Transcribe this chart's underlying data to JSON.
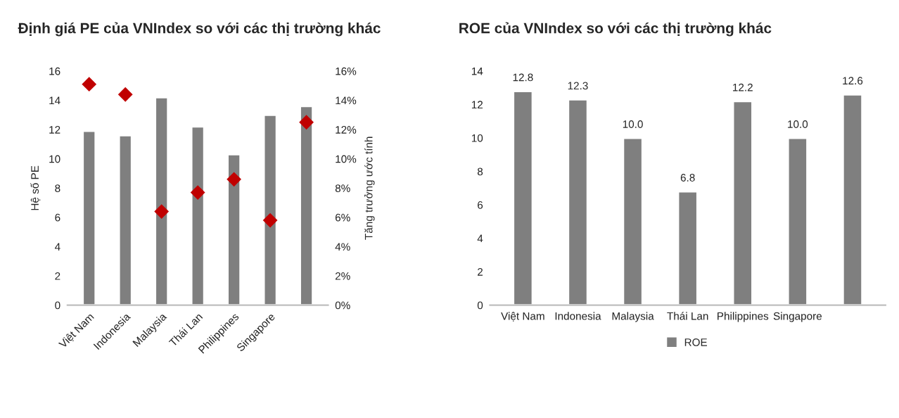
{
  "chart_data": [
    {
      "type": "bar",
      "title": "Định giá PE của VNIndex so với các thị trường khác",
      "ylabel": "Hệ số PE",
      "y2label": "Tăng trưởng ước tính",
      "categories": [
        "Việt Nam",
        "Indonesia",
        "Malaysia",
        "Thái Lan",
        "Philippines",
        "Singapore",
        null
      ],
      "series": [
        {
          "color": "#7f7f7f",
          "values": [
            11.9,
            11.6,
            14.2,
            12.2,
            10.3,
            13.0,
            13.6
          ]
        },
        {
          "type": "scatter",
          "axis": "y2",
          "color": "#c00000",
          "values": [
            15.1,
            14.4,
            6.4,
            7.7,
            8.6,
            5.8,
            12.5
          ]
        }
      ],
      "marker": "diamond",
      "ylim": [
        0,
        16
      ],
      "yticks": [
        0,
        2,
        4,
        6,
        8,
        10,
        12,
        14,
        16
      ],
      "y2lim": [
        0,
        16
      ],
      "y2ticks": [
        {
          "value": 0,
          "label": "0%"
        },
        {
          "value": 2,
          "label": "2%"
        },
        {
          "value": 4,
          "label": "4%"
        },
        {
          "value": 6,
          "label": "6%"
        },
        {
          "value": 8,
          "label": "8%"
        },
        {
          "value": 10,
          "label": "10%"
        },
        {
          "value": 12,
          "label": "12%"
        },
        {
          "value": 14,
          "label": "14%"
        },
        {
          "value": 16,
          "label": "16%"
        }
      ],
      "grid": false,
      "legend": false
    },
    {
      "type": "bar",
      "title": "ROE của VNIndex so với các thị trường khác",
      "categories": [
        "Việt Nam",
        "Indonesia",
        "Malaysia",
        "Thái Lan",
        "Philippines",
        "Singapore",
        null
      ],
      "series": [
        {
          "name": "ROE",
          "color": "#7f7f7f",
          "values": [
            12.8,
            12.3,
            10.0,
            6.8,
            12.2,
            10.0,
            12.6
          ],
          "value_labels": [
            "12.8",
            "12.3",
            "10.0",
            "6.8",
            "12.2",
            "10.0",
            "12.6"
          ]
        }
      ],
      "ylim": [
        0,
        14
      ],
      "yticks": [
        0,
        2,
        4,
        6,
        8,
        10,
        12,
        14
      ],
      "grid": false,
      "legend": "bottom"
    }
  ]
}
